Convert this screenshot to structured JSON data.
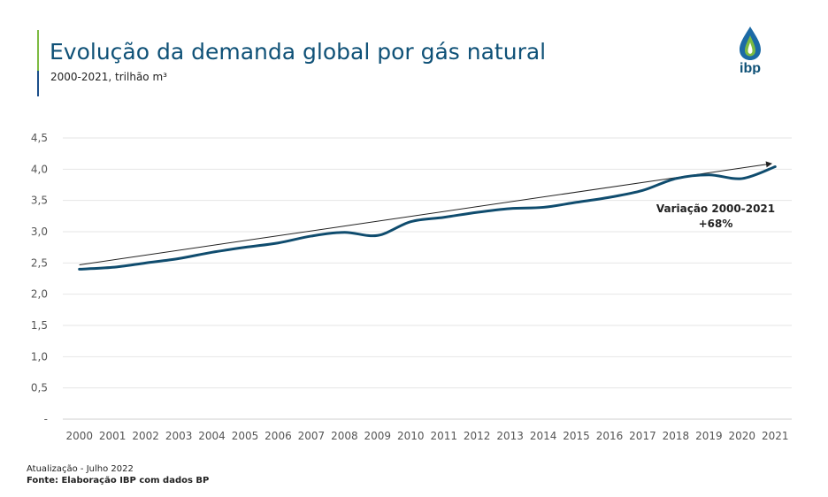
{
  "header": {
    "title": "Evolução da demanda global por gás natural",
    "subtitle": "2000-2021, trilhão m³"
  },
  "logo": {
    "text": "ibp",
    "colors": {
      "drop_green": "#7dbb42",
      "drop_blue": "#1c6aa5",
      "text": "#0f5177"
    }
  },
  "footer": {
    "update": "Atualização - Julho 2022",
    "source": "Fonte: Elaboração IBP com dados BP"
  },
  "colors": {
    "line": "#0f4c6e",
    "trend": "#222222",
    "grid": "#e6e6e6",
    "axis_text": "#555555"
  },
  "chart_data": {
    "type": "line",
    "title": "Evolução da demanda global por gás natural",
    "xlabel": "",
    "ylabel": "",
    "ylim": [
      0,
      4.5
    ],
    "yticks": [
      0,
      0.5,
      1.0,
      1.5,
      2.0,
      2.5,
      3.0,
      3.5,
      4.0,
      4.5
    ],
    "ytick_labels": [
      "-",
      "0,5",
      "1,0",
      "1,5",
      "2,0",
      "2,5",
      "3,0",
      "3,5",
      "4,0",
      "4,5"
    ],
    "grid": true,
    "categories": [
      "2000",
      "2001",
      "2002",
      "2003",
      "2004",
      "2005",
      "2006",
      "2007",
      "2008",
      "2009",
      "2010",
      "2011",
      "2012",
      "2013",
      "2014",
      "2015",
      "2016",
      "2017",
      "2018",
      "2019",
      "2020",
      "2021"
    ],
    "series": [
      {
        "values": [
          2.4,
          2.43,
          2.5,
          2.57,
          2.67,
          2.75,
          2.82,
          2.93,
          2.99,
          2.94,
          3.16,
          3.23,
          3.31,
          3.37,
          3.39,
          3.47,
          3.55,
          3.66,
          3.85,
          3.91,
          3.85,
          4.04
        ]
      }
    ],
    "trend_arrow": {
      "from": [
        "2000",
        2.47
      ],
      "to": [
        "2021",
        4.09
      ]
    },
    "annotation": {
      "line1": "Variação 2000-2021",
      "line2": "+68%"
    }
  }
}
